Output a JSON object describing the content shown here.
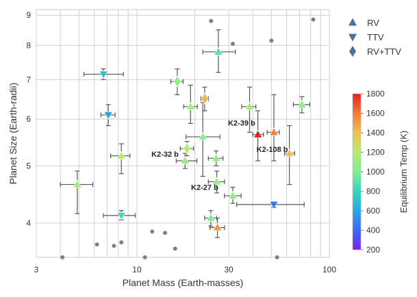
{
  "chart_data": {
    "type": "scatter",
    "title": "",
    "xlabel": "Planet Mass (Earth-masses)",
    "ylabel": "Planet Size (Earth-radii)",
    "x_scale": "log",
    "y_scale": "log",
    "xlim": [
      3,
      100
    ],
    "ylim": [
      3.5,
      9.2
    ],
    "x_tick_labels": [
      {
        "value": 3,
        "label": "3"
      },
      {
        "value": 10,
        "label": "10"
      },
      {
        "value": 30,
        "label": "30"
      },
      {
        "value": 100,
        "label": "100"
      }
    ],
    "y_tick_labels": [
      {
        "value": 4,
        "label": "4"
      },
      {
        "value": 5,
        "label": "5"
      },
      {
        "value": 6,
        "label": "6"
      },
      {
        "value": 7,
        "label": "7"
      },
      {
        "value": 8,
        "label": "8"
      },
      {
        "value": 9,
        "label": "9"
      }
    ],
    "grid": true,
    "legend": {
      "placement": "top-right",
      "entries": [
        {
          "label": "RV",
          "marker": "triangle-up"
        },
        {
          "label": "TTV",
          "marker": "triangle-down"
        },
        {
          "label": "RV+TTV",
          "marker": "diamond"
        }
      ]
    },
    "colorbar": {
      "label": "Equilibrium Temp (K)",
      "min": 200,
      "max": 1800,
      "ticks": [
        "200",
        "400",
        "600",
        "800",
        "1000",
        "1200",
        "1400",
        "1600",
        "1800"
      ],
      "colormap": [
        "#7b22f5",
        "#3a68f0",
        "#2ba8e6",
        "#35d6bd",
        "#7ef08f",
        "#b6ec6c",
        "#f1c155",
        "#f57b37",
        "#e5211c"
      ]
    },
    "background_planets": [
      {
        "x": 24.3,
        "y": 8.8
      },
      {
        "x": 31.5,
        "y": 8.05
      },
      {
        "x": 50.0,
        "y": 8.15
      },
      {
        "x": 82.5,
        "y": 8.85
      },
      {
        "x": 6.2,
        "y": 3.68
      },
      {
        "x": 7.6,
        "y": 3.66
      },
      {
        "x": 8.3,
        "y": 3.71
      },
      {
        "x": 12.0,
        "y": 3.87
      },
      {
        "x": 14.0,
        "y": 3.85
      },
      {
        "x": 15.8,
        "y": 3.62
      },
      {
        "x": 4.1,
        "y": 3.5
      },
      {
        "x": 11.0,
        "y": 3.5
      },
      {
        "x": 53.5,
        "y": 3.5
      }
    ],
    "series": [
      {
        "name": "RV",
        "marker": "triangle-up",
        "points": [
          {
            "x": 26.5,
            "y": 7.8,
            "xerr": [
              22.0,
              32.5
            ],
            "yerr": [
              7.2,
              8.5
            ],
            "temp": 880
          },
          {
            "x": 22.0,
            "y": 5.6,
            "xerr": [
              18.0,
              27.0
            ],
            "yerr": [
              4.8,
              6.4
            ],
            "temp": 1020
          },
          {
            "x": 17.8,
            "y": 5.1,
            "xerr": [
              16.0,
              20.5
            ],
            "yerr": [
              4.95,
              5.25
            ],
            "temp": 1080
          },
          {
            "x": 19.0,
            "y": 6.3,
            "xerr": [
              17.5,
              20.6
            ],
            "yerr": [
              5.9,
              6.85
            ],
            "temp": 1150
          },
          {
            "x": 25.8,
            "y": 5.15,
            "xerr": [
              23.5,
              28.0
            ],
            "yerr": [
              5.0,
              5.3
            ],
            "temp": 1080
          },
          {
            "x": 26.0,
            "y": 4.7,
            "xerr": [
              23.5,
              28.5
            ],
            "yerr": [
              4.5,
              4.9
            ],
            "temp": 1080
          },
          {
            "x": 31.5,
            "y": 4.45,
            "xerr": [
              28.5,
              34.8
            ],
            "yerr": [
              4.32,
              4.6
            ],
            "temp": 1060
          },
          {
            "x": 38.5,
            "y": 6.3,
            "xerr": [
              35.0,
              41.5
            ],
            "yerr": [
              5.7,
              6.8
            ],
            "temp": 1120
          },
          {
            "x": 42.5,
            "y": 5.65,
            "xerr": [
              40.0,
              45.5
            ],
            "yerr": [
              5.1,
              6.2
            ],
            "temp": 1800,
            "label": "K2-39 b"
          },
          {
            "x": 51.5,
            "y": 5.7,
            "xerr": [
              47.5,
              55.0
            ],
            "yerr": [
              5.1,
              6.6
            ],
            "temp": 1580
          },
          {
            "x": 62.0,
            "y": 5.25,
            "xerr": [
              58.5,
              66.0
            ],
            "yerr": [
              4.65,
              5.85
            ],
            "temp": 1420,
            "label": "K2-108 b"
          },
          {
            "x": 72.0,
            "y": 6.35,
            "xerr": [
              65.0,
              79.0
            ],
            "yerr": [
              6.15,
              6.55
            ],
            "temp": 1050
          },
          {
            "x": 24.2,
            "y": 4.08,
            "xerr": [
              22.5,
              26.0
            ],
            "yerr": [
              3.95,
              4.2
            ],
            "temp": 990
          },
          {
            "x": 26.2,
            "y": 3.93,
            "xerr": [
              24.0,
              28.5
            ],
            "yerr": [
              3.78,
              4.08
            ],
            "temp": 1520
          },
          {
            "x": 4.9,
            "y": 4.65,
            "xerr": [
              4.0,
              5.9
            ],
            "yerr": [
              4.15,
              4.9
            ],
            "temp": 1100
          },
          {
            "x": 8.3,
            "y": 5.2,
            "xerr": [
              7.3,
              9.2
            ],
            "yerr": [
              4.85,
              5.45
            ],
            "temp": 1200
          }
        ]
      },
      {
        "name": "TTV",
        "marker": "triangle-down",
        "points": [
          {
            "x": 6.7,
            "y": 7.15,
            "xerr": [
              5.3,
              8.5
            ],
            "yerr": [
              7.0,
              7.3
            ],
            "temp": 700
          },
          {
            "x": 7.1,
            "y": 6.1,
            "xerr": [
              6.5,
              7.7
            ],
            "yerr": [
              5.85,
              6.35
            ],
            "temp": 580
          },
          {
            "x": 8.3,
            "y": 4.12,
            "xerr": [
              6.7,
              9.8
            ],
            "yerr": [
              4.05,
              4.2
            ],
            "temp": 840
          },
          {
            "x": 51.5,
            "y": 4.3,
            "xerr": [
              33.0,
              74.0
            ],
            "yerr": [
              4.25,
              4.35
            ],
            "temp": 450
          }
        ]
      },
      {
        "name": "RV+TTV",
        "marker": "diamond",
        "points": [
          {
            "x": 16.2,
            "y": 6.95,
            "xerr": [
              15.0,
              17.4
            ],
            "yerr": [
              6.6,
              7.3
            ],
            "temp": 1050
          },
          {
            "x": 22.5,
            "y": 6.5,
            "xerr": [
              21.5,
              23.5
            ],
            "yerr": [
              6.2,
              6.8
            ],
            "temp": 1430
          },
          {
            "x": 18.2,
            "y": 5.35,
            "xerr": [
              16.8,
              19.7
            ],
            "yerr": [
              5.2,
              5.5
            ],
            "temp": 1150,
            "label": "K2-32 b"
          }
        ]
      }
    ],
    "annotations": [
      {
        "text": "K2-39 b",
        "x": 35.0,
        "y": 5.85
      },
      {
        "text": "K2-108 b",
        "x": 50.5,
        "y": 5.28
      },
      {
        "text": "K2-32 b",
        "x": 14.0,
        "y": 5.18
      },
      {
        "text": "K2-27 b",
        "x": 22.5,
        "y": 4.55
      }
    ]
  }
}
